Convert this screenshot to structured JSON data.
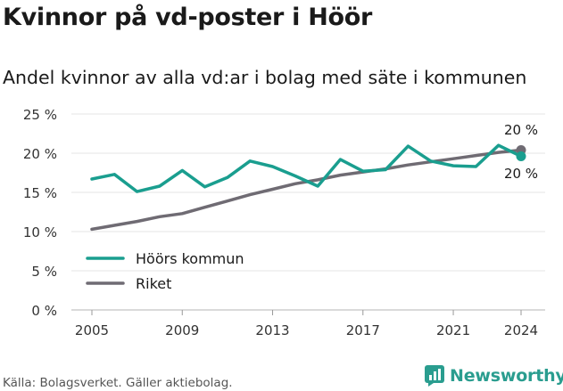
{
  "title": "Kvinnor på vd-poster i Höör",
  "subtitle": "Andel kvinnor av alla vd:ar i bolag med säte i kommunen",
  "source": "Källa: Bolagsverket. Gäller aktiebolag.",
  "brand": {
    "name": "Newsworthy",
    "icon": "newsworthy-logo-icon",
    "color": "#2a9d8f"
  },
  "chart_data": {
    "type": "line",
    "x": [
      2005,
      2006,
      2007,
      2008,
      2009,
      2010,
      2011,
      2012,
      2013,
      2014,
      2015,
      2016,
      2017,
      2018,
      2019,
      2020,
      2021,
      2022,
      2023,
      2024
    ],
    "series": [
      {
        "name": "Höörs kommun",
        "color": "#1a9e8f",
        "values": [
          16.7,
          17.3,
          15.1,
          15.8,
          17.8,
          15.7,
          16.9,
          19.0,
          18.3,
          17.1,
          15.8,
          19.2,
          17.7,
          17.9,
          20.9,
          19.0,
          18.4,
          18.3,
          21.0,
          19.6
        ]
      },
      {
        "name": "Riket",
        "color": "#6f6b73",
        "values": [
          10.3,
          10.8,
          11.3,
          11.9,
          12.3,
          13.1,
          13.9,
          14.7,
          15.4,
          16.1,
          16.6,
          17.2,
          17.6,
          18.0,
          18.5,
          18.9,
          19.3,
          19.7,
          20.1,
          20.4
        ]
      }
    ],
    "xticks": [
      "2005",
      "2009",
      "2013",
      "2017",
      "2021",
      "2024"
    ],
    "xtick_values": [
      2005,
      2009,
      2013,
      2017,
      2021,
      2024
    ],
    "yticks": [
      "0 %",
      "5 %",
      "10 %",
      "15 %",
      "20 %",
      "25 %"
    ],
    "ytick_values": [
      0,
      5,
      10,
      15,
      20,
      25
    ],
    "ylim": [
      0,
      25
    ],
    "xlim": [
      2005,
      2024
    ],
    "end_labels": {
      "Riket": "20 %",
      "Höörs kommun": "20 %"
    },
    "legend_position": "bottom-left",
    "grid": true,
    "xlabel": "",
    "ylabel": ""
  }
}
